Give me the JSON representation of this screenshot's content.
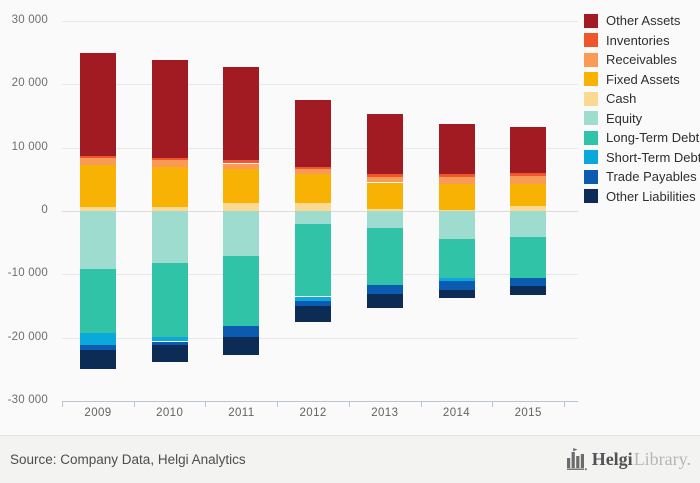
{
  "footer": {
    "source": "Source: Company Data, Helgi Analytics",
    "brand_helgi": "Helgi",
    "brand_library": "Library."
  },
  "chart_data": {
    "type": "bar",
    "stacked": true,
    "title": "",
    "categories": [
      "2009",
      "2010",
      "2011",
      "2012",
      "2013",
      "2014",
      "2015"
    ],
    "series": [
      {
        "name": "Other Assets",
        "color": "#a31b22",
        "values": [
          16300,
          15400,
          14800,
          10500,
          9500,
          7800,
          7200
        ]
      },
      {
        "name": "Inventories",
        "color": "#f0562b",
        "values": [
          300,
          300,
          500,
          400,
          500,
          500,
          400
        ]
      },
      {
        "name": "Receivables",
        "color": "#f99b56",
        "values": [
          1100,
          1100,
          900,
          700,
          800,
          1200,
          1400
        ]
      },
      {
        "name": "Fixed Assets",
        "color": "#f8b204",
        "values": [
          6600,
          6300,
          5400,
          4700,
          4200,
          4000,
          3400
        ]
      },
      {
        "name": "Cash",
        "color": "#fbd993",
        "values": [
          700,
          700,
          1200,
          1200,
          300,
          200,
          800
        ]
      },
      {
        "name": "Equity",
        "color": "#9edccf",
        "values": [
          -9200,
          -8200,
          -7100,
          -2000,
          -2600,
          -4400,
          -4100
        ]
      },
      {
        "name": "Long-Term Debt",
        "color": "#30c3a7",
        "values": [
          -10100,
          -11700,
          -11100,
          -11500,
          -9100,
          -6200,
          -6400
        ]
      },
      {
        "name": "Short-Term Debt",
        "color": "#0ba9db",
        "values": [
          -1800,
          -700,
          0,
          -700,
          0,
          -400,
          0
        ]
      },
      {
        "name": "Trade Payables",
        "color": "#0b5cb0",
        "values": [
          -900,
          -500,
          -1700,
          -800,
          -1400,
          -1400,
          -1300
        ]
      },
      {
        "name": "Other Liabilities",
        "color": "#0d2c55",
        "values": [
          -3000,
          -2700,
          -2900,
          -2500,
          -2200,
          -1300,
          -1400
        ]
      }
    ],
    "ylim": [
      -30000,
      30000
    ],
    "ytick_step": 10000,
    "ytick_labels": [
      "30 000",
      "20 000",
      "10 000",
      "0",
      "-10 000",
      "-20 000",
      "-30 000"
    ],
    "grid": true,
    "legend_position": "right"
  }
}
